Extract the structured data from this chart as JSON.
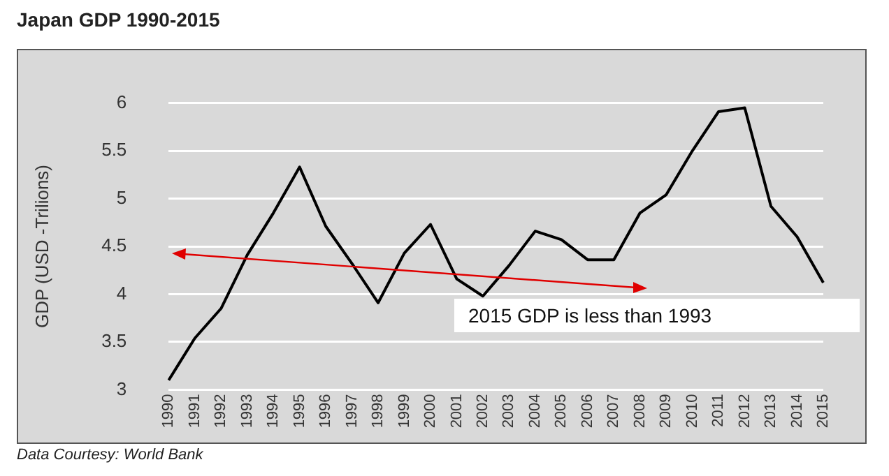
{
  "chart_data": {
    "type": "line",
    "title": "Japan GDP 1990-2015",
    "ylabel": "GDP (USD -Trilions)",
    "categories": [
      "1990",
      "1991",
      "1992",
      "1993",
      "1994",
      "1995",
      "1996",
      "1997",
      "1998",
      "1999",
      "2000",
      "2001",
      "2002",
      "2003",
      "2004",
      "2005",
      "2006",
      "2007",
      "2008",
      "2009",
      "2010",
      "2011",
      "2012",
      "2013",
      "2014",
      "2015"
    ],
    "series": [
      {
        "color": "#000000",
        "values": [
          3.1,
          3.54,
          3.85,
          4.41,
          4.85,
          5.33,
          4.71,
          4.32,
          3.91,
          4.43,
          4.73,
          4.16,
          3.98,
          4.3,
          4.66,
          4.57,
          4.36,
          4.36,
          4.85,
          5.04,
          5.5,
          5.91,
          5.95,
          4.92,
          4.6,
          4.12
        ]
      }
    ],
    "ylim": [
      3,
      6
    ],
    "yticks": [
      3,
      3.5,
      4,
      4.5,
      5,
      5.5,
      6
    ],
    "grid": "y",
    "legend": false,
    "marker": "none",
    "line_style": "solid",
    "annotations": [
      "2015 GDP is less than 1993",
      "Data Courtesy: World Bank"
    ]
  }
}
